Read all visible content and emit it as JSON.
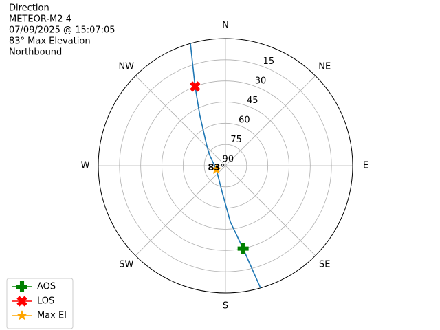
{
  "chart_data": {
    "type": "polar",
    "title": [
      "Direction",
      "METEOR-M2 4",
      "07/09/2025 @ 15:07:05",
      "83° Max Elevation",
      "Northbound"
    ],
    "ylim": [
      90,
      0
    ],
    "yticks": [
      15,
      30,
      45,
      60,
      75,
      90
    ],
    "xlim": [
      0,
      360
    ],
    "xticks": [
      {
        "value": 0,
        "label": "N"
      },
      {
        "value": 45,
        "label": "NE"
      },
      {
        "value": 90,
        "label": "E"
      },
      {
        "value": 135,
        "label": "SE"
      },
      {
        "value": 180,
        "label": "S"
      },
      {
        "value": 225,
        "label": "SW"
      },
      {
        "value": 270,
        "label": "W"
      },
      {
        "value": 315,
        "label": "NW"
      }
    ],
    "grid": true,
    "legend": "lower left",
    "series": [
      {
        "color": "#1f77b4",
        "marker": "line",
        "x": [
          164,
          168,
          175,
          187,
          248,
          305,
          318,
          333,
          339,
          344
        ],
        "values": [
          0,
          30,
          50,
          71,
          83,
          76,
          70,
          50,
          30,
          0
        ]
      },
      {
        "name": "AOS",
        "color": "#008000",
        "marker": "plus",
        "x": [
          168
        ],
        "values": [
          30
        ]
      },
      {
        "name": "LOS",
        "color": "#ff0000",
        "marker": "x",
        "x": [
          339
        ],
        "values": [
          30
        ]
      },
      {
        "name": "Max El",
        "color": "#ffa500",
        "marker": "star",
        "x": [
          248
        ],
        "values": [
          83
        ]
      }
    ],
    "annotations": [
      {
        "text": "83°",
        "x": 248,
        "y": 83
      }
    ]
  }
}
